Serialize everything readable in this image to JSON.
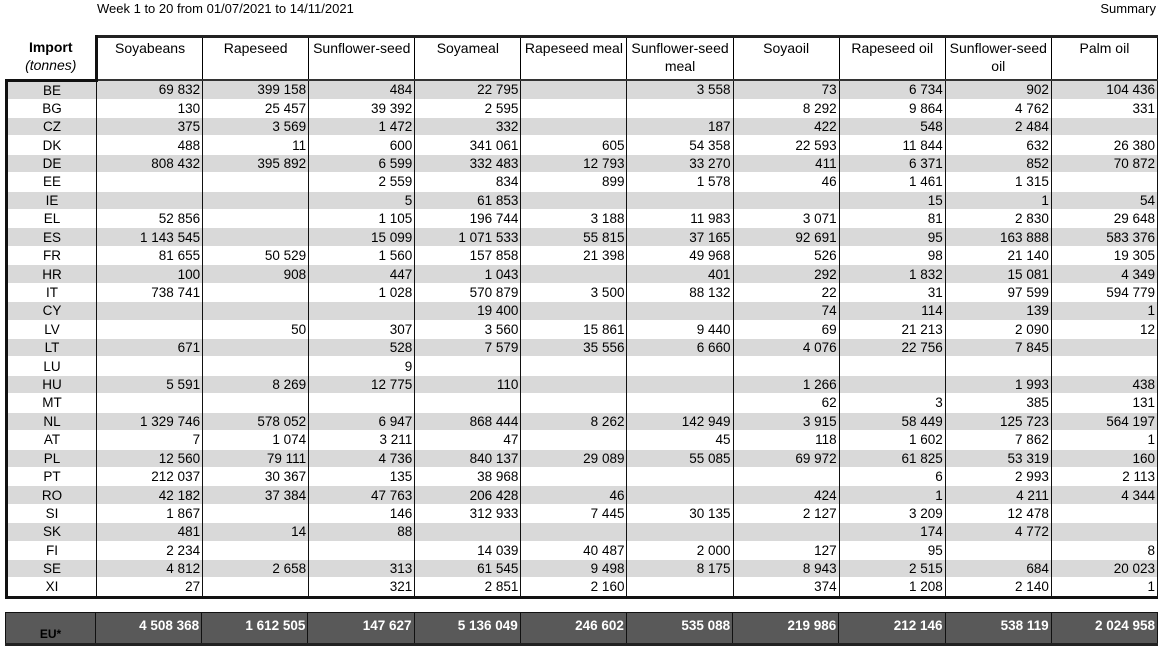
{
  "header": {
    "period": "Week 1 to 20 from 01/07/2021 to 14/11/2021",
    "summary": "Summary"
  },
  "table": {
    "label_title": "Import",
    "label_unit": "(tonnes)",
    "columns": [
      "Soyabeans",
      "Rapeseed",
      "Sunflower-seed",
      "Soyameal",
      "Rapeseed meal",
      "Sunflower-seed meal",
      "Soyaoil",
      "Rapeseed oil",
      "Sunflower-seed oil",
      "Palm oil"
    ],
    "rows": [
      {
        "country": "BE",
        "values": [
          "69 832",
          "399 158",
          "484",
          "22 795",
          "",
          "3 558",
          "73",
          "6 734",
          "902",
          "104 436"
        ]
      },
      {
        "country": "BG",
        "values": [
          "130",
          "25 457",
          "39 392",
          "2 595",
          "",
          "",
          "8 292",
          "9 864",
          "4 762",
          "331"
        ]
      },
      {
        "country": "CZ",
        "values": [
          "375",
          "3 569",
          "1 472",
          "332",
          "",
          "187",
          "422",
          "548",
          "2 484",
          ""
        ]
      },
      {
        "country": "DK",
        "values": [
          "488",
          "11",
          "600",
          "341 061",
          "605",
          "54 358",
          "22 593",
          "11 844",
          "632",
          "26 380"
        ]
      },
      {
        "country": "DE",
        "values": [
          "808 432",
          "395 892",
          "6 599",
          "332 483",
          "12 793",
          "33 270",
          "411",
          "6 371",
          "852",
          "70 872"
        ]
      },
      {
        "country": "EE",
        "values": [
          "",
          "",
          "2 559",
          "834",
          "899",
          "1 578",
          "46",
          "1 461",
          "1 315",
          ""
        ]
      },
      {
        "country": "IE",
        "values": [
          "",
          "",
          "5",
          "61 853",
          "",
          "",
          "",
          "15",
          "1",
          "54"
        ]
      },
      {
        "country": "EL",
        "values": [
          "52 856",
          "",
          "1 105",
          "196 744",
          "3 188",
          "11 983",
          "3 071",
          "81",
          "2 830",
          "29 648"
        ]
      },
      {
        "country": "ES",
        "values": [
          "1 143 545",
          "",
          "15 099",
          "1 071 533",
          "55 815",
          "37 165",
          "92 691",
          "95",
          "163 888",
          "583 376"
        ]
      },
      {
        "country": "FR",
        "values": [
          "81 655",
          "50 529",
          "1 560",
          "157 858",
          "21 398",
          "49 968",
          "526",
          "98",
          "21 140",
          "19 305"
        ]
      },
      {
        "country": "HR",
        "values": [
          "100",
          "908",
          "447",
          "1 043",
          "",
          "401",
          "292",
          "1 832",
          "15 081",
          "4 349"
        ]
      },
      {
        "country": "IT",
        "values": [
          "738 741",
          "",
          "1 028",
          "570 879",
          "3 500",
          "88 132",
          "22",
          "31",
          "97 599",
          "594 779"
        ]
      },
      {
        "country": "CY",
        "values": [
          "",
          "",
          "",
          "19 400",
          "",
          "",
          "74",
          "114",
          "139",
          "1"
        ]
      },
      {
        "country": "LV",
        "values": [
          "",
          "50",
          "307",
          "3 560",
          "15 861",
          "9 440",
          "69",
          "21 213",
          "2 090",
          "12"
        ]
      },
      {
        "country": "LT",
        "values": [
          "671",
          "",
          "528",
          "7 579",
          "35 556",
          "6 660",
          "4 076",
          "22 756",
          "7 845",
          ""
        ]
      },
      {
        "country": "LU",
        "values": [
          "",
          "",
          "9",
          "",
          "",
          "",
          "",
          "",
          "",
          ""
        ]
      },
      {
        "country": "HU",
        "values": [
          "5 591",
          "8 269",
          "12 775",
          "110",
          "",
          "",
          "1 266",
          "",
          "1 993",
          "438"
        ]
      },
      {
        "country": "MT",
        "values": [
          "",
          "",
          "",
          "",
          "",
          "",
          "62",
          "3",
          "385",
          "131"
        ]
      },
      {
        "country": "NL",
        "values": [
          "1 329 746",
          "578 052",
          "6 947",
          "868 444",
          "8 262",
          "142 949",
          "3 915",
          "58 449",
          "125 723",
          "564 197"
        ]
      },
      {
        "country": "AT",
        "values": [
          "7",
          "1 074",
          "3 211",
          "47",
          "",
          "45",
          "118",
          "1 602",
          "7 862",
          "1"
        ]
      },
      {
        "country": "PL",
        "values": [
          "12 560",
          "79 111",
          "4 736",
          "840 137",
          "29 089",
          "55 085",
          "69 972",
          "61 825",
          "53 319",
          "160"
        ]
      },
      {
        "country": "PT",
        "values": [
          "212 037",
          "30 367",
          "135",
          "38 968",
          "",
          "",
          "",
          "6",
          "2 993",
          "2 113"
        ]
      },
      {
        "country": "RO",
        "values": [
          "42 182",
          "37 384",
          "47 763",
          "206 428",
          "46",
          "",
          "424",
          "1",
          "4 211",
          "4 344"
        ]
      },
      {
        "country": "SI",
        "values": [
          "1 867",
          "",
          "146",
          "312 933",
          "7 445",
          "30 135",
          "2 127",
          "3 209",
          "12 478",
          ""
        ]
      },
      {
        "country": "SK",
        "values": [
          "481",
          "14",
          "88",
          "",
          "",
          "",
          "",
          "174",
          "4 772",
          ""
        ]
      },
      {
        "country": "FI",
        "values": [
          "2 234",
          "",
          "",
          "14 039",
          "40 487",
          "2 000",
          "127",
          "95",
          "",
          "8"
        ]
      },
      {
        "country": "SE",
        "values": [
          "4 812",
          "2 658",
          "313",
          "61 545",
          "9 498",
          "8 175",
          "8 943",
          "2 515",
          "684",
          "20 023"
        ]
      },
      {
        "country": "XI",
        "values": [
          "27",
          "",
          "321",
          "2 851",
          "2 160",
          "",
          "374",
          "1 208",
          "2 140",
          "1"
        ]
      }
    ],
    "total": {
      "label": "EU*",
      "values": [
        "4 508 368",
        "1 612 505",
        "147 627",
        "5 136 049",
        "246 602",
        "535 088",
        "219 986",
        "212 146",
        "538 119",
        "2 024 958"
      ]
    }
  }
}
